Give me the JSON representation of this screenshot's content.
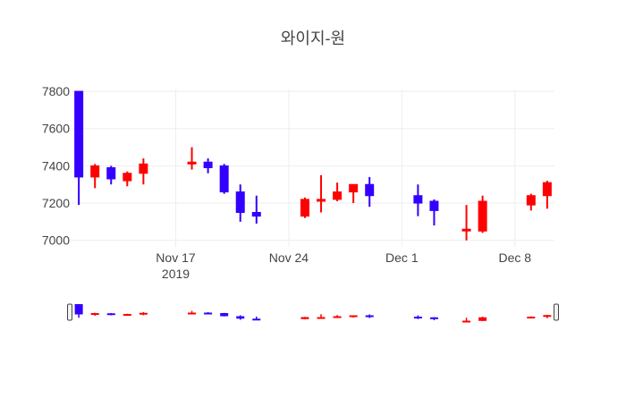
{
  "chart_data": {
    "type": "candlestick",
    "title": "와이지-원",
    "xlabel": "",
    "ylabel": "",
    "ylim": [
      6965,
      7810
    ],
    "yticks": [
      7000,
      7200,
      7400,
      7600,
      7800
    ],
    "xticks": [
      {
        "date": "2019-11-17",
        "label": "Nov 17",
        "sublabel": "2019"
      },
      {
        "date": "2019-11-24",
        "label": "Nov 24",
        "sublabel": ""
      },
      {
        "date": "2019-12-01",
        "label": "Dec 1",
        "sublabel": ""
      },
      {
        "date": "2019-12-08",
        "label": "Dec 8",
        "sublabel": ""
      }
    ],
    "xrange": [
      "2019-11-11",
      "2019-12-10"
    ],
    "colors": {
      "increasing": "#ff0000",
      "decreasing": "#3300ff",
      "grid": "#eeeeee"
    },
    "grid": true,
    "rangeslider": true,
    "candles": [
      {
        "date": "2019-11-11",
        "open": 7800,
        "high": 7800,
        "low": 7190,
        "close": 7340
      },
      {
        "date": "2019-11-12",
        "open": 7340,
        "high": 7410,
        "low": 7280,
        "close": 7400
      },
      {
        "date": "2019-11-13",
        "open": 7390,
        "high": 7400,
        "low": 7300,
        "close": 7330
      },
      {
        "date": "2019-11-14",
        "open": 7320,
        "high": 7370,
        "low": 7290,
        "close": 7360
      },
      {
        "date": "2019-11-15",
        "open": 7360,
        "high": 7440,
        "low": 7300,
        "close": 7410
      },
      {
        "date": "2019-11-18",
        "open": 7410,
        "high": 7500,
        "low": 7380,
        "close": 7420
      },
      {
        "date": "2019-11-19",
        "open": 7420,
        "high": 7440,
        "low": 7360,
        "close": 7390
      },
      {
        "date": "2019-11-20",
        "open": 7400,
        "high": 7410,
        "low": 7250,
        "close": 7260
      },
      {
        "date": "2019-11-21",
        "open": 7260,
        "high": 7300,
        "low": 7100,
        "close": 7150
      },
      {
        "date": "2019-11-22",
        "open": 7150,
        "high": 7240,
        "low": 7090,
        "close": 7130
      },
      {
        "date": "2019-11-25",
        "open": 7130,
        "high": 7230,
        "low": 7120,
        "close": 7220
      },
      {
        "date": "2019-11-26",
        "open": 7210,
        "high": 7350,
        "low": 7150,
        "close": 7220
      },
      {
        "date": "2019-11-27",
        "open": 7220,
        "high": 7310,
        "low": 7210,
        "close": 7260
      },
      {
        "date": "2019-11-28",
        "open": 7260,
        "high": 7300,
        "low": 7200,
        "close": 7300
      },
      {
        "date": "2019-11-29",
        "open": 7300,
        "high": 7340,
        "low": 7180,
        "close": 7240
      },
      {
        "date": "2019-12-02",
        "open": 7240,
        "high": 7300,
        "low": 7130,
        "close": 7200
      },
      {
        "date": "2019-12-03",
        "open": 7210,
        "high": 7220,
        "low": 7080,
        "close": 7160
      },
      {
        "date": "2019-12-05",
        "open": 7060,
        "high": 7190,
        "low": 7000,
        "close": 7060
      },
      {
        "date": "2019-12-06",
        "open": 7050,
        "high": 7240,
        "low": 7040,
        "close": 7210
      },
      {
        "date": "2019-12-09",
        "open": 7190,
        "high": 7250,
        "low": 7160,
        "close": 7240
      },
      {
        "date": "2019-12-10",
        "open": 7240,
        "high": 7320,
        "low": 7170,
        "close": 7310
      }
    ]
  }
}
